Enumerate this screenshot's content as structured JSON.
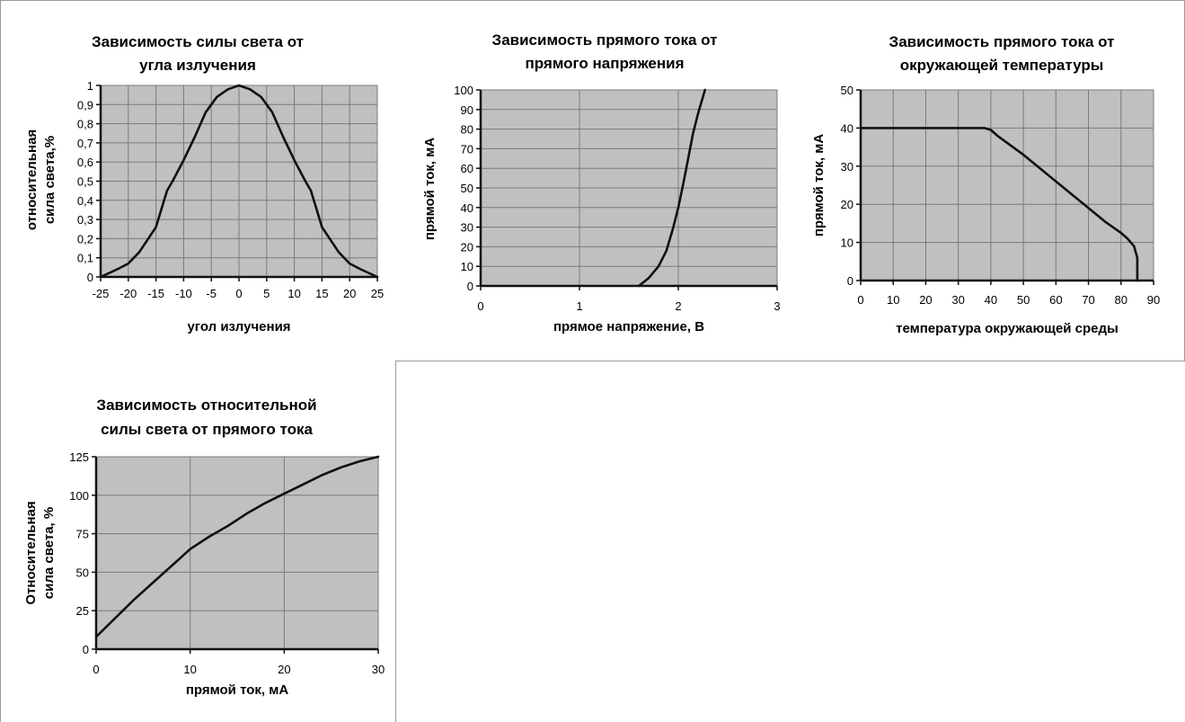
{
  "chart_data": [
    {
      "id": "angle",
      "type": "line",
      "title_lines": [
        "Зависимость силы света от",
        "угла излучения"
      ],
      "ylabel_lines": [
        "относительная",
        "сила света,%"
      ],
      "xlabel": "угол излучения",
      "xlim": [
        -25,
        25
      ],
      "ylim": [
        0,
        1
      ],
      "xticks": [
        -25,
        -20,
        -15,
        -10,
        -5,
        0,
        5,
        10,
        15,
        20,
        25
      ],
      "yticks": [
        0,
        0.1,
        0.2,
        0.3,
        0.4,
        0.5,
        0.6,
        0.7,
        0.8,
        0.9,
        1
      ],
      "xtick_labels": [
        "-25",
        "-20",
        "-15",
        "-10",
        "-5",
        "0",
        "5",
        "10",
        "15",
        "20",
        "25"
      ],
      "ytick_labels": [
        "0",
        "0,1",
        "0,2",
        "0,3",
        "0,4",
        "0,5",
        "0,6",
        "0,7",
        "0,8",
        "0,9",
        "1"
      ],
      "grid": true,
      "series": [
        {
          "x": [
            -25,
            -22,
            -20,
            -18,
            -15,
            -13,
            -12,
            -10,
            -8,
            -6,
            -4,
            -2,
            0,
            2,
            4,
            6,
            8,
            10,
            12,
            13,
            15,
            18,
            20,
            22,
            25
          ],
          "y": [
            0,
            0.04,
            0.07,
            0.13,
            0.26,
            0.45,
            0.5,
            0.61,
            0.73,
            0.86,
            0.94,
            0.98,
            1,
            0.98,
            0.94,
            0.86,
            0.73,
            0.61,
            0.5,
            0.45,
            0.26,
            0.13,
            0.07,
            0.04,
            0
          ]
        }
      ]
    },
    {
      "id": "voltage",
      "type": "line",
      "title_lines": [
        "Зависимость прямого тока от",
        "прямого напряжения"
      ],
      "ylabel_lines": [
        "прямой ток, мА"
      ],
      "xlabel": "прямое напряжение, В",
      "xlim": [
        0,
        3
      ],
      "ylim": [
        0,
        100
      ],
      "xticks": [
        0,
        1,
        2,
        3
      ],
      "yticks": [
        0,
        10,
        20,
        30,
        40,
        50,
        60,
        70,
        80,
        90,
        100
      ],
      "xtick_labels": [
        "0",
        "1",
        "2",
        "3"
      ],
      "ytick_labels": [
        "0",
        "10",
        "20",
        "30",
        "40",
        "50",
        "60",
        "70",
        "80",
        "90",
        "100"
      ],
      "grid": true,
      "series": [
        {
          "x": [
            1.6,
            1.7,
            1.8,
            1.88,
            1.95,
            2.0,
            2.05,
            2.1,
            2.15,
            2.2,
            2.27
          ],
          "y": [
            0,
            4,
            10,
            18,
            30,
            40,
            52,
            65,
            78,
            88,
            100
          ]
        }
      ]
    },
    {
      "id": "temperature",
      "type": "line",
      "title_lines": [
        "Зависимость прямого тока от",
        "окружающей температуры"
      ],
      "ylabel_lines": [
        "прямой ток, мА"
      ],
      "xlabel": "температура окружающей среды",
      "xlim": [
        0,
        90
      ],
      "ylim": [
        0,
        50
      ],
      "xticks": [
        0,
        10,
        20,
        30,
        40,
        50,
        60,
        70,
        80,
        90
      ],
      "yticks": [
        0,
        10,
        20,
        30,
        40,
        50
      ],
      "xtick_labels": [
        "0",
        "10",
        "20",
        "30",
        "40",
        "50",
        "60",
        "70",
        "80",
        "90"
      ],
      "ytick_labels": [
        "0",
        "10",
        "20",
        "30",
        "40",
        "50"
      ],
      "grid": true,
      "series": [
        {
          "x": [
            0,
            38,
            40,
            42,
            50,
            60,
            70,
            75,
            80,
            82,
            84,
            85,
            85
          ],
          "y": [
            40,
            40,
            39.5,
            38,
            33,
            26,
            19,
            15.5,
            12.5,
            11,
            9,
            6,
            0
          ]
        }
      ]
    },
    {
      "id": "current",
      "type": "line",
      "title_lines": [
        "Зависимость относительной",
        "силы света от прямого тока"
      ],
      "ylabel_lines": [
        "Относительная",
        "сила света, %"
      ],
      "xlabel": "прямой ток, мА",
      "xlim": [
        0,
        30
      ],
      "ylim": [
        0,
        125
      ],
      "xticks": [
        0,
        10,
        20,
        30
      ],
      "yticks": [
        0,
        25,
        50,
        75,
        100,
        125
      ],
      "xtick_labels": [
        "0",
        "10",
        "20",
        "30"
      ],
      "ytick_labels": [
        "0",
        "25",
        "50",
        "75",
        "100",
        "125"
      ],
      "grid": true,
      "series": [
        {
          "x": [
            0,
            2,
            4,
            6,
            8,
            10,
            12,
            14,
            16,
            18,
            20,
            22,
            24,
            26,
            28,
            30
          ],
          "y": [
            8,
            20,
            32,
            43,
            54,
            65,
            73,
            80,
            88,
            95,
            101,
            107,
            113,
            118,
            122,
            125
          ]
        }
      ]
    }
  ],
  "style": {
    "plot_bg": "#c0c0c0",
    "grid_color": "#7a7a7a",
    "line_color": "#111111",
    "frame_color": "#9a9a9a"
  }
}
